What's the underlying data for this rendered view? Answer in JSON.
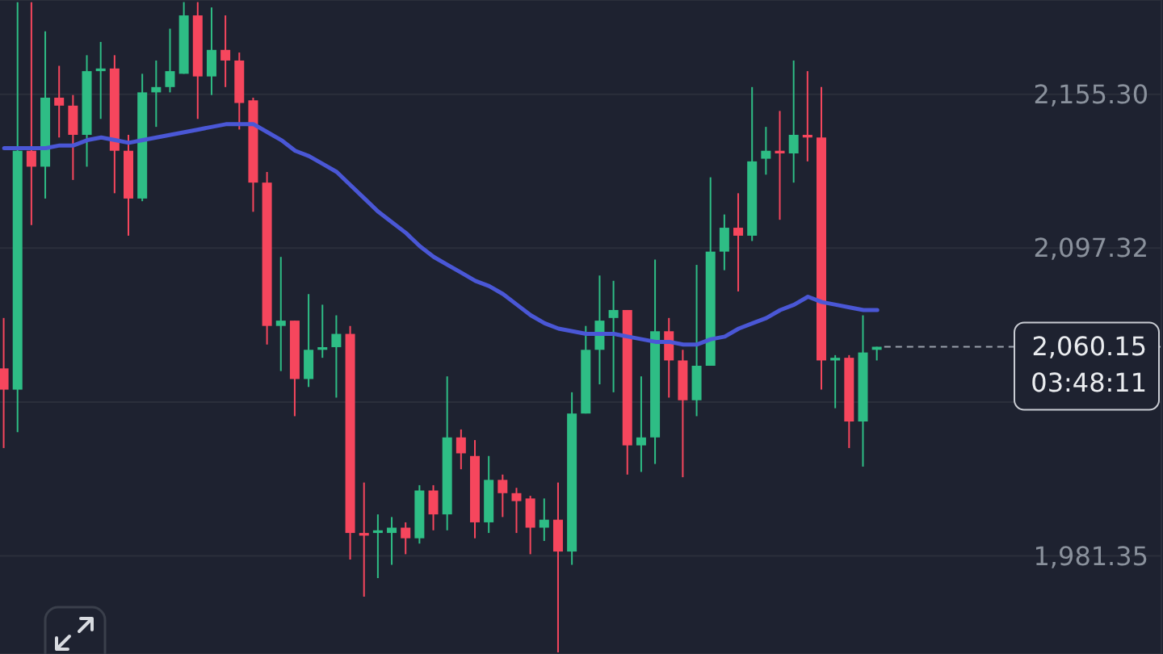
{
  "chart_data": {
    "type": "candlestick",
    "categories": [
      null,
      null,
      null,
      null,
      null,
      null,
      null,
      null,
      null,
      null,
      null,
      null,
      null,
      null,
      null,
      null,
      null,
      null,
      null,
      null,
      null,
      null,
      null,
      null,
      null,
      null,
      null,
      null,
      null,
      null,
      null,
      null,
      null,
      null,
      null,
      null,
      null,
      null,
      null,
      null,
      null,
      null,
      null,
      null,
      null,
      null,
      null,
      null,
      null,
      null,
      null,
      null,
      null,
      null,
      null,
      null,
      null,
      null,
      null,
      null,
      null,
      null,
      null,
      null
    ],
    "ohlc": [
      [
        2052,
        2071,
        2022,
        2044
      ],
      [
        2044,
        2190,
        2028,
        2134
      ],
      [
        2134,
        2190,
        2106,
        2128
      ],
      [
        2128,
        2179,
        2116,
        2154
      ],
      [
        2154,
        2166,
        2139,
        2151
      ],
      [
        2151,
        2155,
        2123,
        2140
      ],
      [
        2140,
        2170,
        2128,
        2164
      ],
      [
        2164,
        2175,
        2146,
        2165
      ],
      [
        2165,
        2170,
        2118,
        2134
      ],
      [
        2134,
        2140,
        2102,
        2116
      ],
      [
        2116,
        2163,
        2115,
        2156
      ],
      [
        2156,
        2168,
        2143,
        2158
      ],
      [
        2158,
        2180,
        2156,
        2164
      ],
      [
        2163,
        2190,
        2163,
        2185
      ],
      [
        2185,
        2190,
        2146,
        2162
      ],
      [
        2162,
        2188,
        2155,
        2172
      ],
      [
        2172,
        2185,
        2158,
        2168
      ],
      [
        2168,
        2171,
        2142,
        2152
      ],
      [
        2153,
        2154,
        2111,
        2122
      ],
      [
        2122,
        2126,
        2061,
        2068
      ],
      [
        2068,
        2094,
        2051,
        2070
      ],
      [
        2070,
        2070,
        2034,
        2048
      ],
      [
        2048,
        2080,
        2045,
        2059
      ],
      [
        2059,
        2076,
        2056,
        2060
      ],
      [
        2060,
        2072,
        2041,
        2065
      ],
      [
        2065,
        2068,
        1980,
        1990
      ],
      [
        1990,
        2009,
        1966,
        1989
      ],
      [
        1990,
        1997,
        1973,
        1991
      ],
      [
        1990,
        1996,
        1978,
        1992
      ],
      [
        1992,
        1994,
        1982,
        1988
      ],
      [
        1988,
        2008,
        1986,
        2006
      ],
      [
        2006,
        2008,
        1991,
        1997
      ],
      [
        1997,
        2049,
        1991,
        2026
      ],
      [
        2026,
        2029,
        2014,
        2020
      ],
      [
        2019,
        2025,
        1988,
        1994
      ],
      [
        1994,
        2019,
        1990,
        2010
      ],
      [
        2010,
        2012,
        1996,
        2005
      ],
      [
        2005,
        2007,
        1990,
        2002
      ],
      [
        2003,
        2004,
        1982,
        1992
      ],
      [
        1992,
        2003,
        1987,
        1995
      ],
      [
        1995,
        2009,
        1945,
        1983
      ],
      [
        1983,
        2043,
        1978,
        2035
      ],
      [
        2035,
        2068,
        2035,
        2059
      ],
      [
        2059,
        2087,
        2046,
        2070
      ],
      [
        2071,
        2085,
        2043,
        2074
      ],
      [
        2074,
        2074,
        2012,
        2023
      ],
      [
        2023,
        2049,
        2013,
        2026
      ],
      [
        2026,
        2093,
        2016,
        2066
      ],
      [
        2066,
        2071,
        2041,
        2055
      ],
      [
        2055,
        2059,
        2011,
        2040
      ],
      [
        2040,
        2091,
        2034,
        2053
      ],
      [
        2053,
        2124,
        2053,
        2096
      ],
      [
        2096,
        2110,
        2089,
        2105
      ],
      [
        2105,
        2118,
        2081,
        2102
      ],
      [
        2102,
        2158,
        2100,
        2130
      ],
      [
        2131,
        2143,
        2125,
        2134
      ],
      [
        2134,
        2149,
        2108,
        2133
      ],
      [
        2133,
        2168,
        2122,
        2140
      ],
      [
        2140,
        2164,
        2130,
        2139
      ],
      [
        2139,
        2158,
        2044,
        2055
      ],
      [
        2055,
        2057,
        2037,
        2056
      ],
      [
        2056,
        2057,
        2022,
        2032
      ],
      [
        2032,
        2072,
        2015,
        2058
      ],
      [
        2059,
        2060.15,
        2055,
        2060.15
      ]
    ],
    "colors": [
      "#f6465d",
      "#2ebd85",
      "#f6465d",
      "#2ebd85",
      "#f6465d",
      "#f6465d",
      "#2ebd85",
      "#2ebd85",
      "#f6465d",
      "#f6465d",
      "#2ebd85",
      "#2ebd85",
      "#2ebd85",
      "#2ebd85",
      "#f6465d",
      "#2ebd85",
      "#f6465d",
      "#f6465d",
      "#f6465d",
      "#f6465d",
      "#2ebd85",
      "#f6465d",
      "#2ebd85",
      "#2ebd85",
      "#2ebd85",
      "#f6465d",
      "#f6465d",
      "#2ebd85",
      "#2ebd85",
      "#f6465d",
      "#2ebd85",
      "#f6465d",
      "#2ebd85",
      "#f6465d",
      "#f6465d",
      "#2ebd85",
      "#f6465d",
      "#f6465d",
      "#f6465d",
      "#2ebd85",
      "#f6465d",
      "#2ebd85",
      "#2ebd85",
      "#2ebd85",
      "#2ebd85",
      "#f6465d",
      "#2ebd85",
      "#2ebd85",
      "#f6465d",
      "#f6465d",
      "#2ebd85",
      "#2ebd85",
      "#2ebd85",
      "#f6465d",
      "#2ebd85",
      "#2ebd85",
      "#f6465d",
      "#2ebd85",
      "#f6465d",
      "#f6465d",
      "#2ebd85",
      "#f6465d",
      "#2ebd85",
      "#2ebd85"
    ],
    "series": [
      {
        "type": "line",
        "color": "#4a57d6",
        "values": [
          2135,
          2135,
          2135,
          2135,
          2136,
          2136,
          2138,
          2139,
          2138,
          2137,
          2138,
          2139,
          2140,
          2141,
          2142,
          2143,
          2144,
          2144,
          2144,
          2141,
          2138,
          2134,
          2132,
          2129,
          2126,
          2121,
          2116,
          2111,
          2107,
          2103,
          2098,
          2094,
          2091,
          2088,
          2085,
          2083,
          2080,
          2076,
          2072,
          2069,
          2067,
          2066,
          2065,
          2065,
          2065,
          2064,
          2063,
          2062,
          2062,
          2061,
          2061,
          2063,
          2064,
          2067,
          2069,
          2071,
          2074,
          2076,
          2079,
          2077,
          2076,
          2075,
          2074,
          2074
        ]
      }
    ],
    "ylim": [
      1944.4,
      2190.8
    ],
    "yticks": [
      {
        "value": 1981.35,
        "label": "1,981.35"
      },
      {
        "value": 2039.33,
        "label": null
      },
      {
        "value": 2097.32,
        "label": "2,097.32"
      },
      {
        "value": 2155.3,
        "label": "2,155.30"
      }
    ],
    "grid": "y",
    "tick_labels": "y",
    "ref_lines": [
      {
        "axis": "y",
        "value": 2060.15,
        "label": "2,060.15",
        "line_style": "dashed",
        "color": "#9aa0ab"
      }
    ],
    "annotations": [
      "03:48:11"
    ]
  }
}
